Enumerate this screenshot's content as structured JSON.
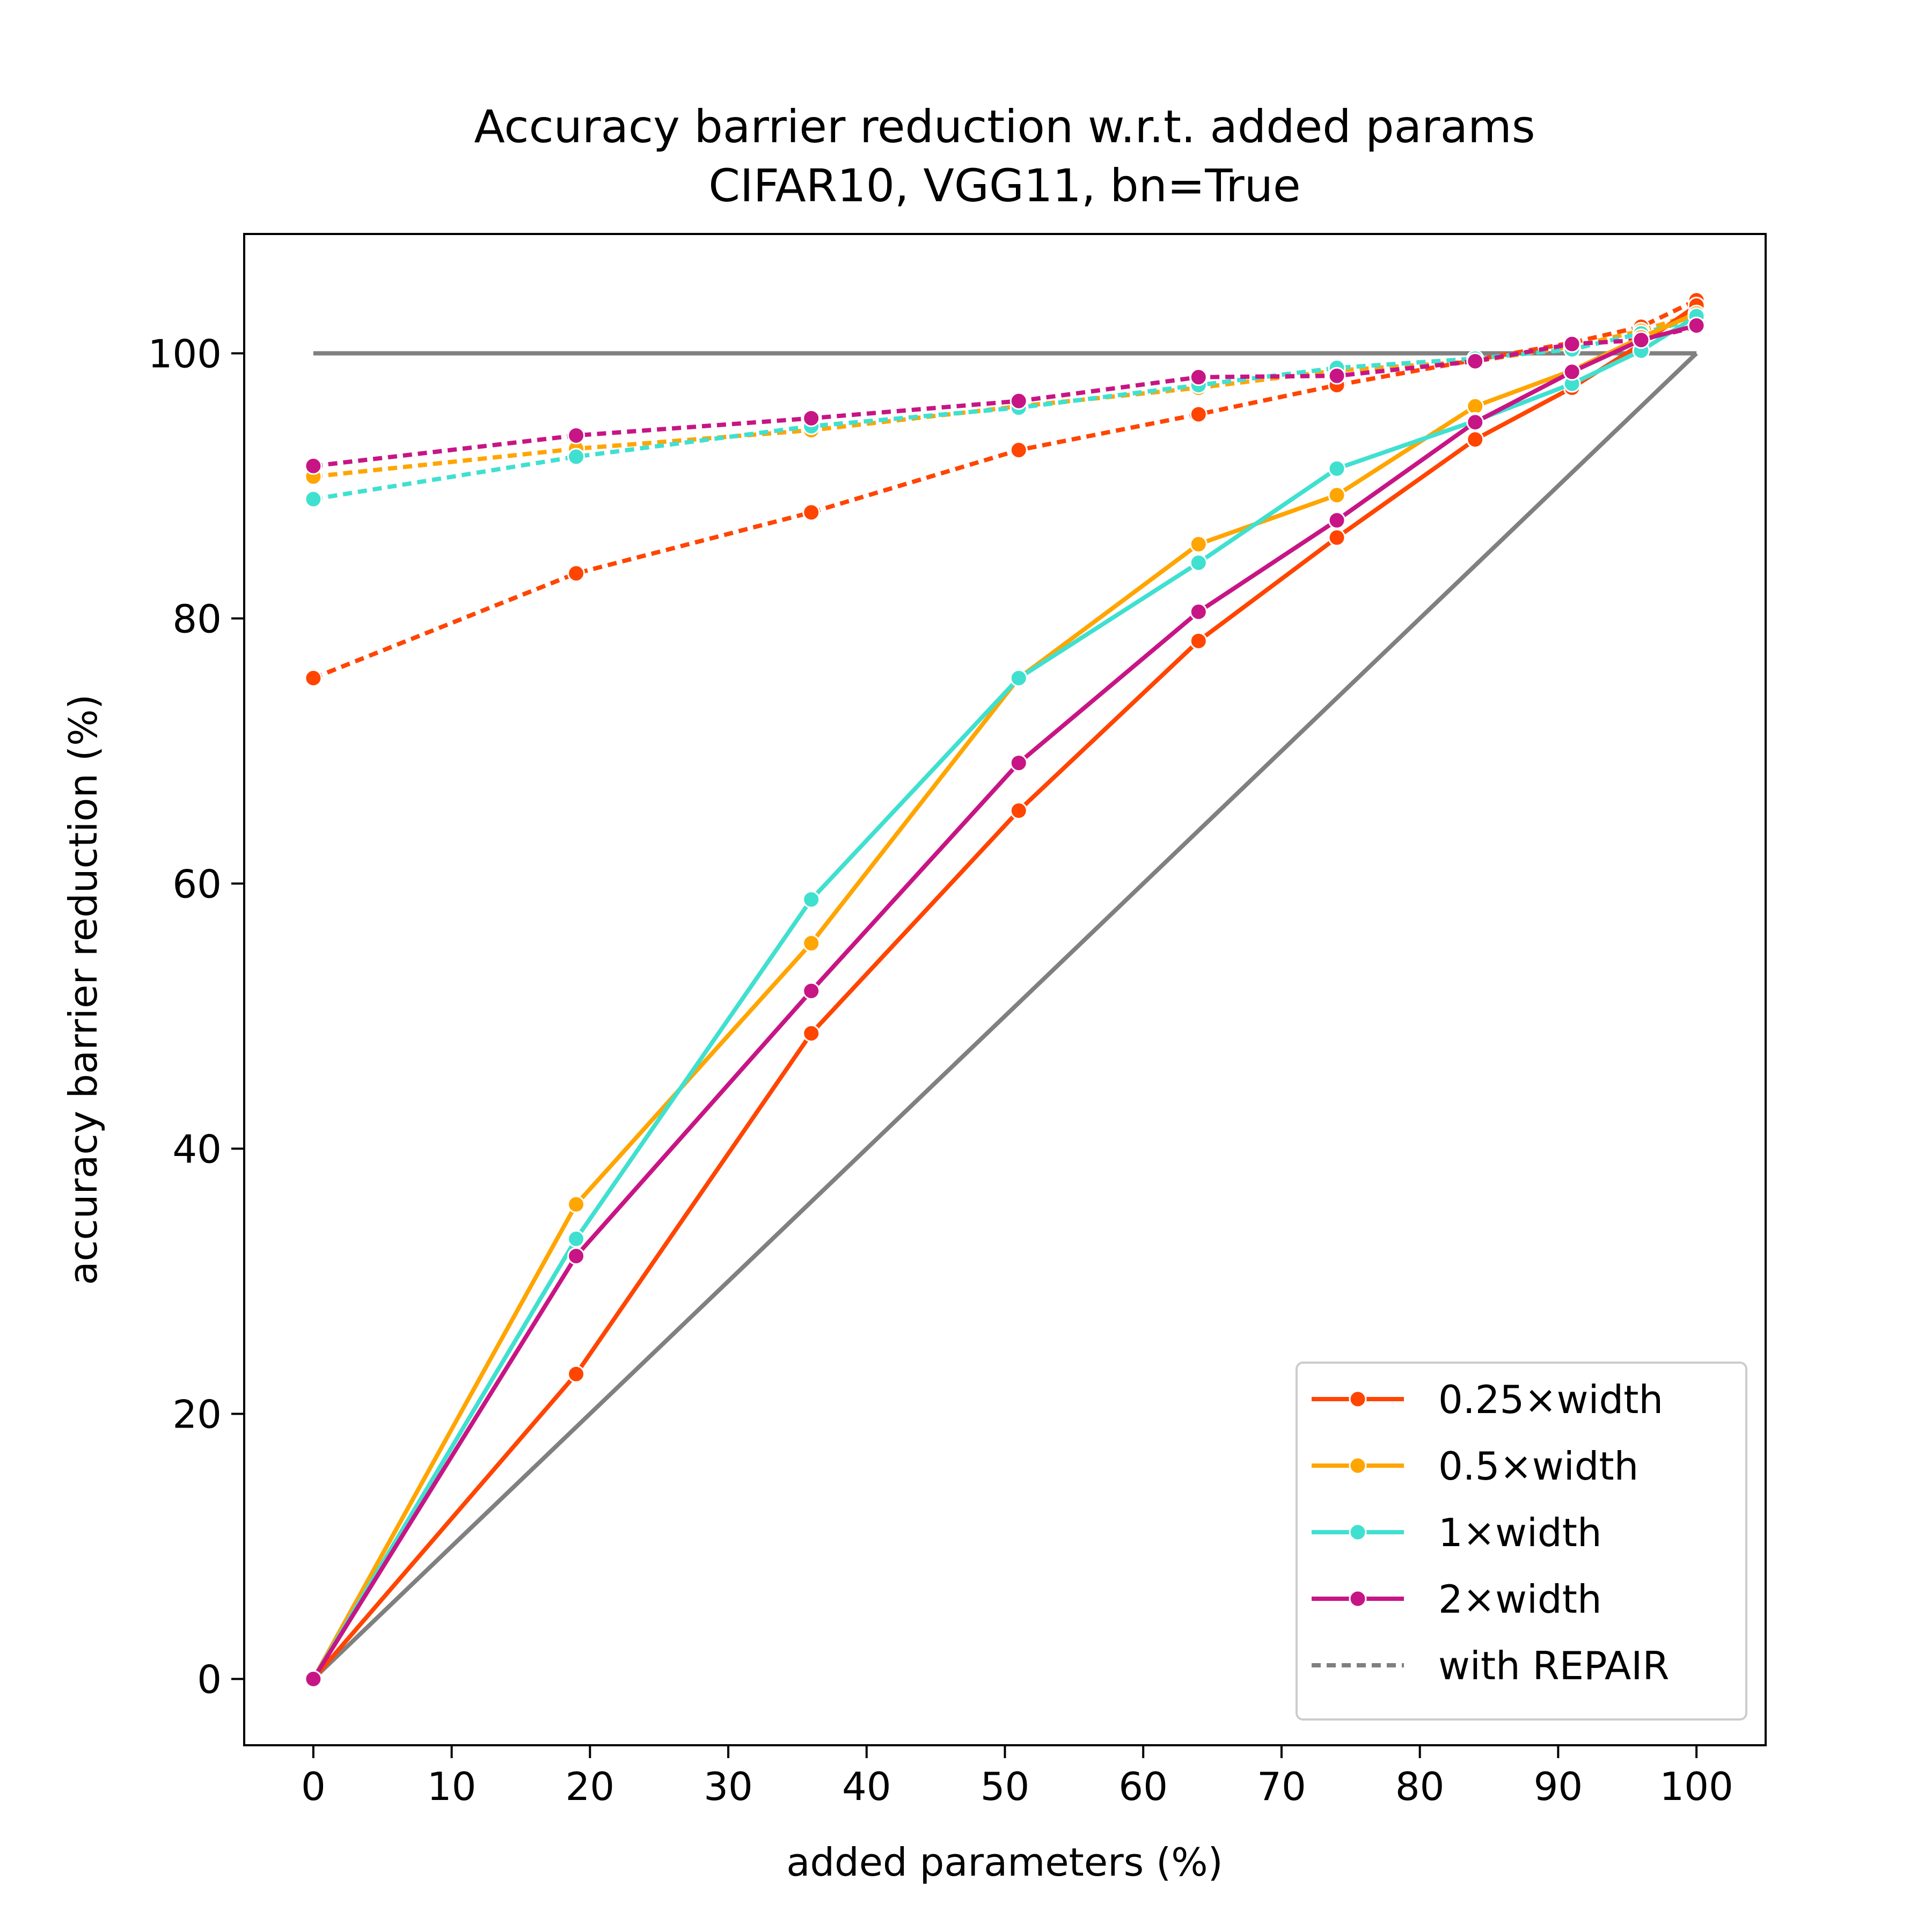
{
  "chart_data": {
    "type": "line",
    "title": "Accuracy barrier reduction w.r.t. added params",
    "subtitle": "CIFAR10, VGG11, bn=True",
    "xlabel": "added parameters (%)",
    "ylabel": "accuracy barrier reduction (%)",
    "xlim": [
      -5,
      105
    ],
    "ylim": [
      -5,
      109
    ],
    "xticks": [
      0,
      10,
      20,
      30,
      40,
      50,
      60,
      70,
      80,
      90,
      100
    ],
    "yticks": [
      0,
      20,
      40,
      60,
      80,
      100
    ],
    "grid": false,
    "legend_position": "lower-right",
    "x": [
      0,
      19,
      36,
      51,
      64,
      74,
      84,
      91,
      96,
      100
    ],
    "reference_lines": [
      {
        "style": "solid",
        "color": "#808080",
        "x": [
          0,
          100
        ],
        "y": [
          100,
          100
        ]
      },
      {
        "style": "solid",
        "color": "#808080",
        "x": [
          0,
          100
        ],
        "y": [
          0,
          100
        ]
      }
    ],
    "series": [
      {
        "name": "0.25×width",
        "color": "#FF4500",
        "style": "solid",
        "values": [
          0,
          23,
          48.7,
          65.5,
          78.3,
          86.1,
          93.5,
          97.4,
          100.7,
          103.6
        ]
      },
      {
        "name": "0.5×width",
        "color": "#FFA500",
        "style": "solid",
        "values": [
          0,
          35.8,
          55.5,
          75.5,
          85.6,
          89.3,
          96.0,
          98.7,
          101.2,
          103.0
        ]
      },
      {
        "name": "1×width",
        "color": "#40E0D0",
        "style": "solid",
        "values": [
          0,
          33.2,
          58.8,
          75.5,
          84.2,
          91.3,
          94.9,
          97.7,
          100.2,
          102.8
        ]
      },
      {
        "name": "2×width",
        "color": "#C71585",
        "style": "solid",
        "values": [
          0,
          31.9,
          51.9,
          69.1,
          80.5,
          87.4,
          94.8,
          98.6,
          101.0,
          102.1
        ]
      },
      {
        "name": "",
        "color": "#FF4500",
        "style": "dotted",
        "values": [
          75.5,
          83.4,
          88.0,
          92.7,
          95.4,
          97.6,
          99.5,
          100.8,
          102.0,
          104.0
        ]
      },
      {
        "name": "",
        "color": "#FFA500",
        "style": "dotted",
        "values": [
          90.7,
          92.8,
          94.2,
          96.0,
          97.4,
          98.7,
          99.4,
          100.5,
          101.7,
          103.0
        ]
      },
      {
        "name": "",
        "color": "#40E0D0",
        "style": "dotted",
        "values": [
          89.0,
          92.2,
          94.5,
          95.9,
          97.6,
          98.9,
          99.6,
          100.3,
          101.5,
          102.6
        ]
      },
      {
        "name": "",
        "color": "#C71585",
        "style": "dotted",
        "values": [
          91.5,
          93.8,
          95.1,
          96.4,
          98.2,
          98.3,
          99.4,
          100.7,
          101.0,
          102.0
        ]
      }
    ],
    "legend": [
      {
        "label": "0.25×width",
        "color": "#FF4500",
        "style": "solid",
        "marker": true
      },
      {
        "label": "0.5×width",
        "color": "#FFA500",
        "style": "solid",
        "marker": true
      },
      {
        "label": "1×width",
        "color": "#40E0D0",
        "style": "solid",
        "marker": true
      },
      {
        "label": "2×width",
        "color": "#C71585",
        "style": "solid",
        "marker": true
      },
      {
        "label": "with REPAIR",
        "color": "#808080",
        "style": "dotted",
        "marker": false
      }
    ]
  }
}
